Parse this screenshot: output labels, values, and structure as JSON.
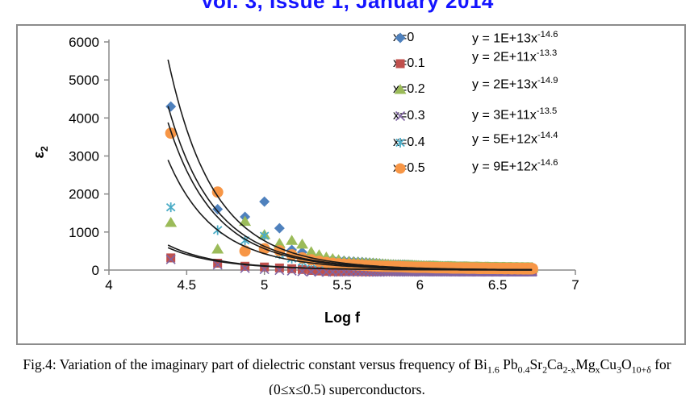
{
  "header": {
    "volume_line": "Vol. 3, Issue 1, January 2014"
  },
  "chart_data": {
    "type": "scatter",
    "xlabel": "Log f",
    "ylabel_base": "ε",
    "ylabel_sub": "2",
    "xlim": [
      4,
      7
    ],
    "ylim": [
      0,
      6000
    ],
    "xticks": [
      "4",
      "4.5",
      "5",
      "5.5",
      "6",
      "6.5",
      "7"
    ],
    "yticks": [
      "0",
      "1000",
      "2000",
      "3000",
      "4000",
      "5000",
      "6000"
    ],
    "grid": false,
    "legend_position": "inside-top-right",
    "axis_color": "#8a8a8a",
    "fit_line_color": "#1a1a1a",
    "x_logf": [
      4.398,
      4.699,
      4.875,
      5.0,
      5.097,
      5.176,
      5.243,
      5.301,
      5.352,
      5.398,
      5.439,
      5.477
    ],
    "series": [
      {
        "label": "x=0",
        "marker": "diamond",
        "color": "#4F81BD",
        "values": [
          4300,
          1600,
          1400,
          1800,
          1100,
          530,
          470,
          380,
          330,
          300,
          280,
          260
        ],
        "fit_a": 10000000000000.0,
        "fit_b": -14.6,
        "eq_base": "y = 1E+13x",
        "eq_sup": "-14.6",
        "tail": {
          "start": 250,
          "end": 45,
          "jitter": 14
        }
      },
      {
        "label": "x=0.1",
        "marker": "square",
        "color": "#C0504D",
        "values": [
          320,
          180,
          100,
          80,
          55,
          35,
          15,
          -10,
          -25,
          -35,
          -40,
          -45
        ],
        "fit_a": 200000000000.0,
        "fit_b": -13.3,
        "eq_base": "y = 2E+11x",
        "eq_sup": "-13.3",
        "tail": {
          "start": -45,
          "end": -30,
          "jitter": 8
        }
      },
      {
        "label": "x=0.2",
        "marker": "triangle",
        "color": "#9BBB59",
        "values": [
          1250,
          550,
          1280,
          930,
          700,
          780,
          680,
          480,
          400,
          340,
          300,
          270
        ],
        "fit_a": 20000000000000.0,
        "fit_b": -14.9,
        "eq_base": "y = 2E+13x",
        "eq_sup": "-14.9",
        "tail": {
          "start": 240,
          "end": 40,
          "jitter": 12
        }
      },
      {
        "label": "x=0.3",
        "marker": "cross",
        "color": "#8064A2",
        "values": [
          280,
          140,
          50,
          20,
          -5,
          -20,
          -35,
          -45,
          -50,
          -50,
          -50,
          -50
        ],
        "fit_a": 300000000000.0,
        "fit_b": -13.5,
        "eq_base": "y = 3E+11x",
        "eq_sup": "-13.5",
        "tail": {
          "start": -50,
          "end": -40,
          "jitter": 7
        }
      },
      {
        "label": "x=0.4",
        "marker": "asterisk",
        "color": "#4BACC6",
        "values": [
          1650,
          1050,
          780,
          900,
          420,
          300,
          215,
          180,
          165,
          155,
          150,
          145
        ],
        "fit_a": 5000000000000.0,
        "fit_b": -14.4,
        "eq_base": "y = 5E+12x",
        "eq_sup": "-14.4",
        "tail": {
          "start": 150,
          "end": 30,
          "jitter": 9
        }
      },
      {
        "label": "x=0.5",
        "marker": "circle",
        "color": "#F79646",
        "values": [
          3600,
          2050,
          500,
          560,
          510,
          400,
          320,
          270,
          230,
          200,
          180,
          165
        ],
        "fit_a": 9000000000000.0,
        "fit_b": -14.6,
        "eq_base": "y = 9E+12x",
        "eq_sup": "-14.6",
        "tail": {
          "start": 150,
          "end": 25,
          "jitter": 9
        }
      }
    ],
    "tail_range": {
      "from_k": 13,
      "to_k": 212,
      "f_step_hz": 25000
    }
  },
  "caption": {
    "line1_segments": [
      {
        "t": "Fig.4: Variation of the imaginary part of dielectric constant versus frequency of Bi"
      },
      {
        "s": "1.6"
      },
      {
        "t": " Pb"
      },
      {
        "s": "0.4"
      },
      {
        "t": "Sr"
      },
      {
        "s": "2"
      },
      {
        "t": "Ca"
      },
      {
        "s": "2-x"
      },
      {
        "t": "Mg"
      },
      {
        "s": "x"
      },
      {
        "t": "Cu"
      },
      {
        "s": "3"
      },
      {
        "t": "O"
      },
      {
        "s": "10+δ"
      },
      {
        "t": " for"
      }
    ],
    "line2": "(0≤x≤0.5) superconductors."
  }
}
